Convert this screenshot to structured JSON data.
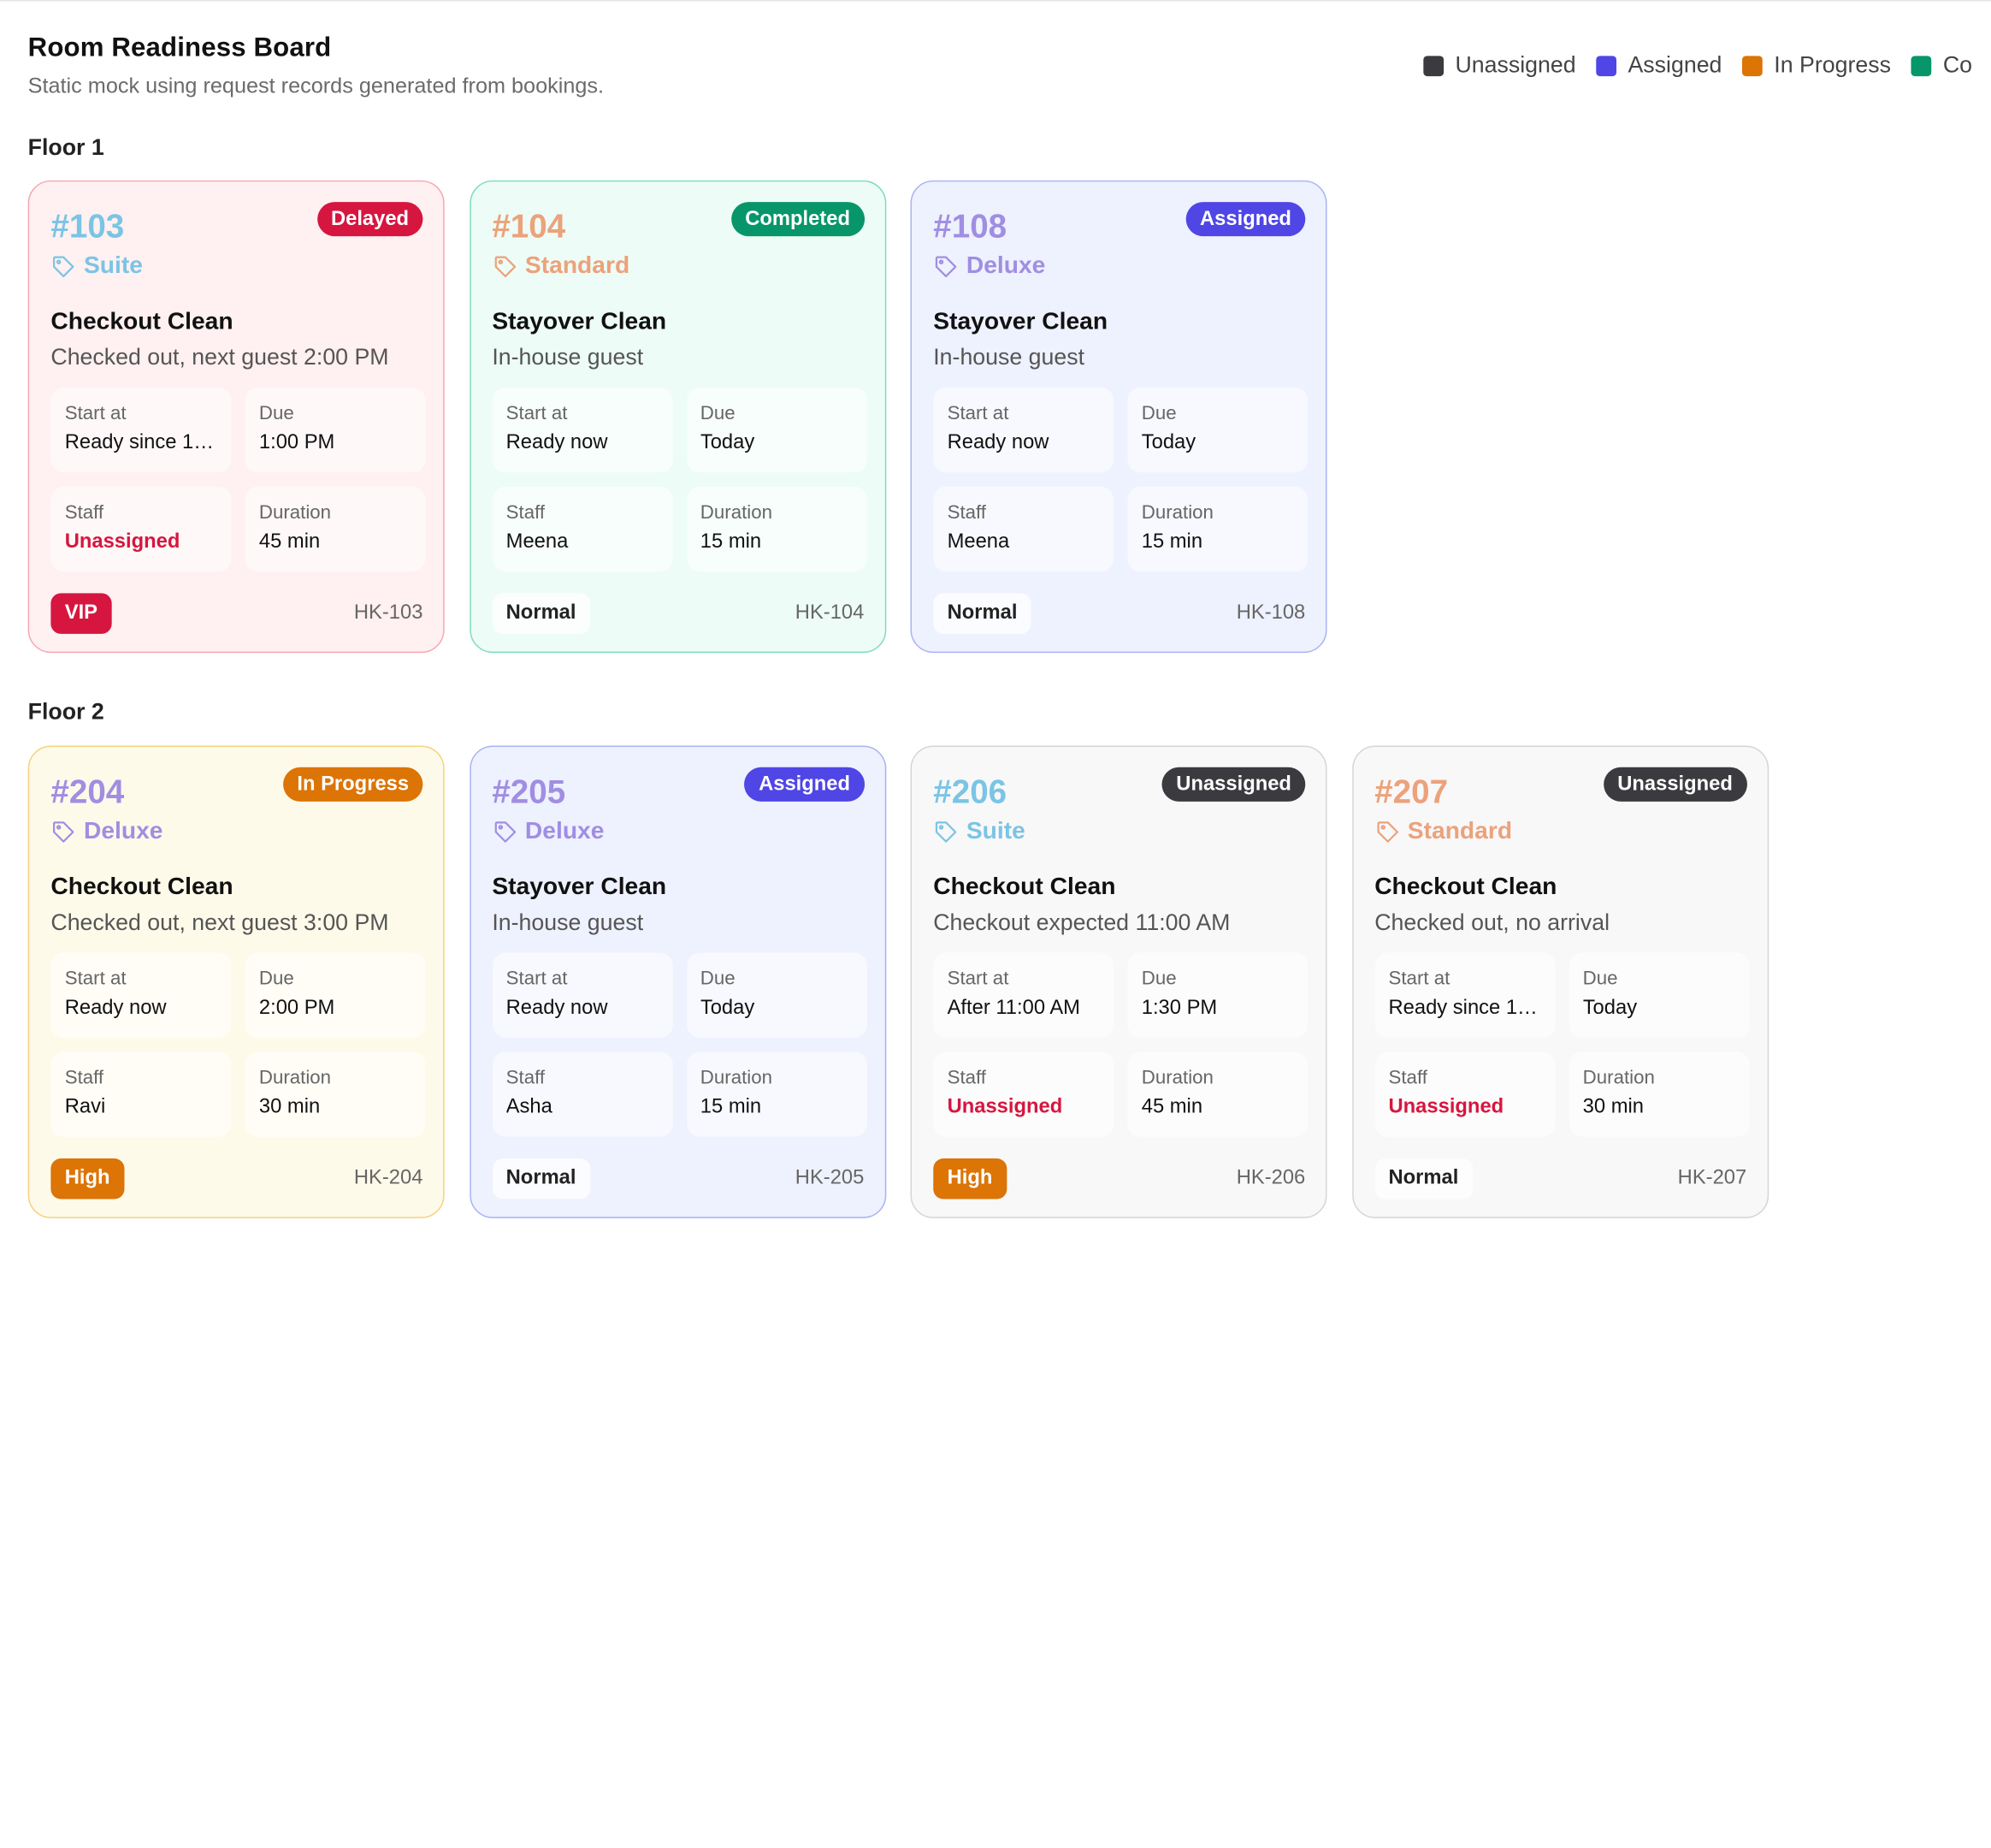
{
  "header": {
    "title": "Room Readiness Board",
    "subtitle": "Static mock using request records generated from bookings."
  },
  "legend": [
    {
      "label": "Unassigned",
      "color": "#3a3a3f"
    },
    {
      "label": "Assigned",
      "color": "#4f46e5"
    },
    {
      "label": "In Progress",
      "color": "#dc7406"
    },
    {
      "label": "Co",
      "color": "#079669"
    }
  ],
  "labels": {
    "start": "Start at",
    "due": "Due",
    "staff": "Staff",
    "duration": "Duration"
  },
  "floors": [
    {
      "name": "Floor 1",
      "rooms": [
        {
          "number": "#103",
          "number_color": "#7bc4e4",
          "status": "Delayed",
          "status_color": "#d6163f",
          "type": "Suite",
          "type_color": "#7bc4e4",
          "task": "Checkout Clean",
          "note": "Checked out, next guest 2:00 PM",
          "start": "Ready since 10...",
          "due": "1:00 PM",
          "staff": "Unassigned",
          "duration": "45 min",
          "priority": "VIP",
          "code": "HK-103"
        },
        {
          "number": "#104",
          "number_color": "#eca27b",
          "status": "Completed",
          "status_color": "#079669",
          "type": "Standard",
          "type_color": "#eca27b",
          "task": "Stayover Clean",
          "note": "In-house guest",
          "start": "Ready now",
          "due": "Today",
          "staff": "Meena",
          "duration": "15 min",
          "priority": "Normal",
          "code": "HK-104"
        },
        {
          "number": "#108",
          "number_color": "#a08ee2",
          "status": "Assigned",
          "status_color": "#4f46e5",
          "type": "Deluxe",
          "type_color": "#a08ee2",
          "task": "Stayover Clean",
          "note": "In-house guest",
          "start": "Ready now",
          "due": "Today",
          "staff": "Meena",
          "duration": "15 min",
          "priority": "Normal",
          "code": "HK-108"
        }
      ]
    },
    {
      "name": "Floor 2",
      "rooms": [
        {
          "number": "#204",
          "number_color": "#a08ee2",
          "status": "In Progress",
          "status_color": "#dc7406",
          "type": "Deluxe",
          "type_color": "#a08ee2",
          "task": "Checkout Clean",
          "note": "Checked out, next guest 3:00 PM",
          "start": "Ready now",
          "due": "2:00 PM",
          "staff": "Ravi",
          "duration": "30 min",
          "priority": "High",
          "code": "HK-204"
        },
        {
          "number": "#205",
          "number_color": "#a08ee2",
          "status": "Assigned",
          "status_color": "#4f46e5",
          "type": "Deluxe",
          "type_color": "#a08ee2",
          "task": "Stayover Clean",
          "note": "In-house guest",
          "start": "Ready now",
          "due": "Today",
          "staff": "Asha",
          "duration": "15 min",
          "priority": "Normal",
          "code": "HK-205"
        },
        {
          "number": "#206",
          "number_color": "#7bc4e4",
          "status": "Unassigned",
          "status_color": "#3a3a3f",
          "type": "Suite",
          "type_color": "#7bc4e4",
          "task": "Checkout Clean",
          "note": "Checkout expected 11:00 AM",
          "start": "After 11:00 AM",
          "due": "1:30 PM",
          "staff": "Unassigned",
          "duration": "45 min",
          "priority": "High",
          "code": "HK-206"
        },
        {
          "number": "#207",
          "number_color": "#eca27b",
          "status": "Unassigned",
          "status_color": "#3a3a3f",
          "type": "Standard",
          "type_color": "#eca27b",
          "task": "Checkout Clean",
          "note": "Checked out, no arrival",
          "start": "Ready since 10...",
          "due": "Today",
          "staff": "Unassigned",
          "duration": "30 min",
          "priority": "Normal",
          "code": "HK-207"
        }
      ]
    }
  ]
}
